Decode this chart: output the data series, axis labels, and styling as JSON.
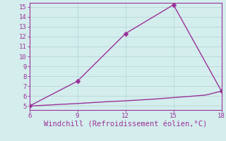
{
  "line1_x": [
    6,
    9,
    12,
    15,
    18
  ],
  "line1_y": [
    5.0,
    7.5,
    12.3,
    15.2,
    6.5
  ],
  "line2_x": [
    6,
    7,
    8,
    9,
    10,
    11,
    12,
    13,
    14,
    15,
    16,
    17,
    18
  ],
  "line2_y": [
    5.0,
    5.08,
    5.17,
    5.25,
    5.35,
    5.45,
    5.52,
    5.62,
    5.72,
    5.85,
    5.97,
    6.1,
    6.5
  ],
  "line_color": "#993399",
  "bg_color": "#d4eded",
  "xlabel": "Windchill (Refroidissement éolien,°C)",
  "xlim": [
    6,
    18
  ],
  "ylim": [
    4.6,
    15.4
  ],
  "xticks": [
    6,
    9,
    12,
    15,
    18
  ],
  "yticks": [
    5,
    6,
    7,
    8,
    9,
    10,
    11,
    12,
    13,
    14,
    15
  ],
  "marker": "D",
  "markersize": 3,
  "linewidth": 1.0,
  "tick_fontsize": 6.5,
  "xlabel_fontsize": 7.5
}
